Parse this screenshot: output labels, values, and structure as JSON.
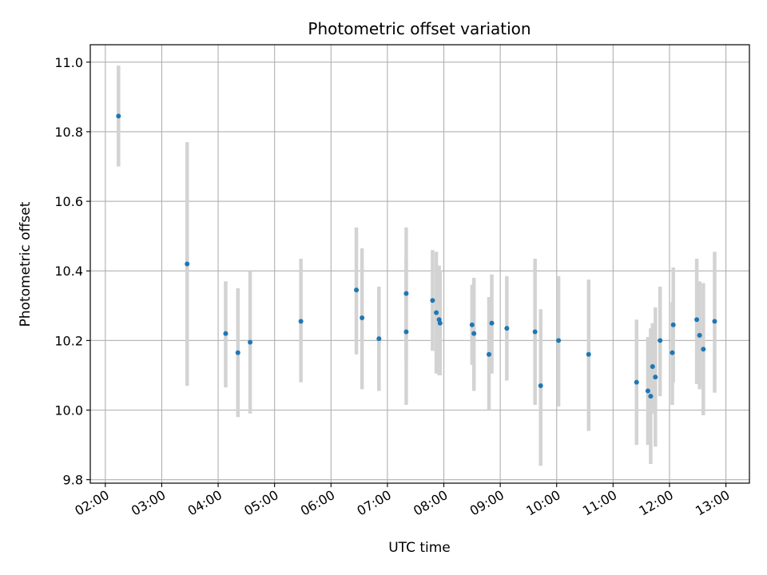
{
  "chart_data": {
    "type": "scatter",
    "title": "Photometric offset variation",
    "xlabel": "UTC time",
    "ylabel": "Photometric offset",
    "x_is_time": true,
    "xlim": [
      "01:44",
      "13:25"
    ],
    "ylim": [
      9.79,
      11.05
    ],
    "x_ticks": [
      "02:00",
      "03:00",
      "04:00",
      "05:00",
      "06:00",
      "07:00",
      "08:00",
      "09:00",
      "10:00",
      "11:00",
      "12:00",
      "13:00"
    ],
    "y_ticks": [
      9.8,
      10.0,
      10.2,
      10.4,
      10.6,
      10.8,
      11.0
    ],
    "y_tick_labels": [
      "9.8",
      "10.0",
      "10.2",
      "10.4",
      "10.6",
      "10.8",
      "11.0"
    ],
    "grid": true,
    "colors": {
      "point": "#1f77b4",
      "errorbar": "#d3d3d3",
      "grid": "#b0b0b0"
    },
    "points": [
      {
        "t": "02:14",
        "y": 10.845,
        "lo": 10.7,
        "hi": 10.99
      },
      {
        "t": "03:27",
        "y": 10.42,
        "lo": 10.07,
        "hi": 10.77
      },
      {
        "t": "04:08",
        "y": 10.22,
        "lo": 10.065,
        "hi": 10.37
      },
      {
        "t": "04:21",
        "y": 10.165,
        "lo": 9.98,
        "hi": 10.35
      },
      {
        "t": "04:34",
        "y": 10.195,
        "lo": 9.99,
        "hi": 10.4
      },
      {
        "t": "05:28",
        "y": 10.255,
        "lo": 10.08,
        "hi": 10.435
      },
      {
        "t": "06:27",
        "y": 10.345,
        "lo": 10.16,
        "hi": 10.525
      },
      {
        "t": "06:33",
        "y": 10.265,
        "lo": 10.06,
        "hi": 10.465
      },
      {
        "t": "06:51",
        "y": 10.205,
        "lo": 10.055,
        "hi": 10.355
      },
      {
        "t": "07:20",
        "y": 10.335,
        "lo": 10.14,
        "hi": 10.525
      },
      {
        "t": "07:20",
        "y": 10.225,
        "lo": 10.015,
        "hi": 10.43
      },
      {
        "t": "07:48",
        "y": 10.315,
        "lo": 10.17,
        "hi": 10.46
      },
      {
        "t": "07:52",
        "y": 10.28,
        "lo": 10.105,
        "hi": 10.455
      },
      {
        "t": "07:55",
        "y": 10.26,
        "lo": 10.1,
        "hi": 10.415
      },
      {
        "t": "07:56",
        "y": 10.25,
        "lo": 10.1,
        "hi": 10.4
      },
      {
        "t": "08:30",
        "y": 10.245,
        "lo": 10.13,
        "hi": 10.36
      },
      {
        "t": "08:32",
        "y": 10.22,
        "lo": 10.055,
        "hi": 10.38
      },
      {
        "t": "08:48",
        "y": 10.16,
        "lo": 10.0,
        "hi": 10.325
      },
      {
        "t": "08:51",
        "y": 10.25,
        "lo": 10.105,
        "hi": 10.39
      },
      {
        "t": "09:07",
        "y": 10.235,
        "lo": 10.085,
        "hi": 10.385
      },
      {
        "t": "09:37",
        "y": 10.225,
        "lo": 10.015,
        "hi": 10.435
      },
      {
        "t": "09:43",
        "y": 10.07,
        "lo": 9.84,
        "hi": 10.29
      },
      {
        "t": "10:02",
        "y": 10.2,
        "lo": 10.01,
        "hi": 10.385
      },
      {
        "t": "10:34",
        "y": 10.16,
        "lo": 9.94,
        "hi": 10.375
      },
      {
        "t": "11:25",
        "y": 10.08,
        "lo": 9.9,
        "hi": 10.26
      },
      {
        "t": "11:37",
        "y": 10.055,
        "lo": 9.9,
        "hi": 10.21
      },
      {
        "t": "11:40",
        "y": 10.04,
        "lo": 9.845,
        "hi": 10.235
      },
      {
        "t": "11:42",
        "y": 10.125,
        "lo": 9.99,
        "hi": 10.25
      },
      {
        "t": "11:45",
        "y": 10.095,
        "lo": 9.895,
        "hi": 10.295
      },
      {
        "t": "11:50",
        "y": 10.2,
        "lo": 10.04,
        "hi": 10.355
      },
      {
        "t": "12:03",
        "y": 10.165,
        "lo": 10.015,
        "hi": 10.31
      },
      {
        "t": "12:04",
        "y": 10.245,
        "lo": 10.08,
        "hi": 10.41
      },
      {
        "t": "12:29",
        "y": 10.26,
        "lo": 10.075,
        "hi": 10.435
      },
      {
        "t": "12:32",
        "y": 10.215,
        "lo": 10.06,
        "hi": 10.37
      },
      {
        "t": "12:36",
        "y": 10.175,
        "lo": 9.985,
        "hi": 10.365
      },
      {
        "t": "12:48",
        "y": 10.255,
        "lo": 10.05,
        "hi": 10.455
      }
    ]
  }
}
